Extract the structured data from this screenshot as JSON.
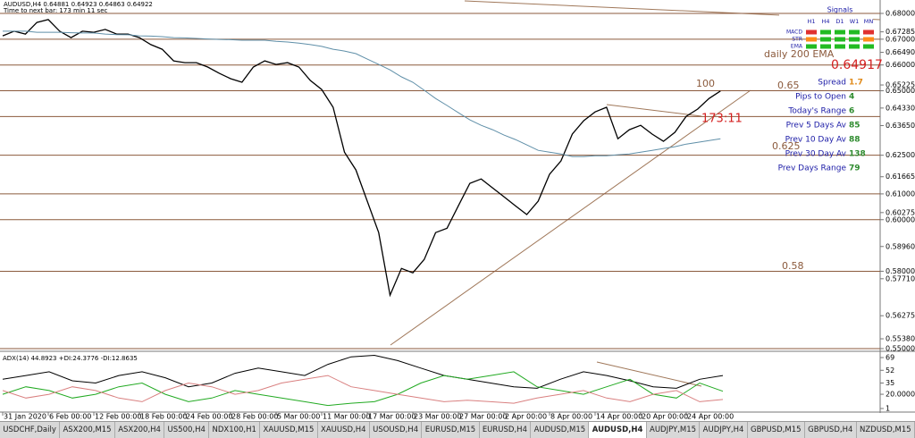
{
  "chart_data": [
    {
      "type": "line",
      "title": "AUDUSD,H4  0.64881 0.64923 0.64863 0.64922",
      "subtitle": "Time to next bar: 173 min 11 sec",
      "categories": [
        "31 Jan 2020",
        null,
        null,
        null,
        "6 Feb 00:00",
        null,
        null,
        null,
        "12 Feb 00:00",
        null,
        null,
        null,
        "18 Feb 00:00",
        null,
        null,
        null,
        "24 Feb 00:00",
        null,
        null,
        null,
        "28 Feb 00:00",
        null,
        null,
        null,
        "5 Mar 00:00",
        null,
        null,
        null,
        "11 Mar 00:00",
        null,
        null,
        null,
        "17 Mar 00:00",
        null,
        null,
        null,
        "23 Mar 00:00",
        null,
        null,
        null,
        "27 Mar 00:00",
        null,
        null,
        null,
        "2 Apr 00:00",
        null,
        null,
        null,
        "8 Apr 00:00",
        null,
        null,
        null,
        "14 Apr 00:00",
        null,
        null,
        null,
        "20 Apr 00:00",
        null,
        null,
        null,
        "24 Apr 00:00",
        null,
        null,
        null
      ],
      "series": [
        {
          "color": "#000000",
          "values": [
            0.6713,
            0.6731,
            0.672,
            0.6765,
            0.6776,
            0.6731,
            0.6706,
            0.6731,
            0.6727,
            0.6738,
            0.672,
            0.672,
            0.6706,
            0.6679,
            0.6661,
            0.6616,
            0.6609,
            0.6609,
            0.6592,
            0.6568,
            0.6547,
            0.6533,
            0.6592,
            0.6616,
            0.6602,
            0.6609,
            0.6592,
            0.654,
            0.6505,
            0.6436,
            0.6262,
            0.6193,
            0.6072,
            0.595,
            0.5707,
            0.5811,
            0.5794,
            0.5846,
            0.595,
            0.5967,
            0.6054,
            0.6141,
            0.6158,
            0.6123,
            0.6089,
            0.6054,
            0.602,
            0.6072,
            0.6176,
            0.6228,
            0.6332,
            0.6384,
            0.6418,
            0.6436,
            0.6314,
            0.6349,
            0.6366,
            0.6332,
            0.6304,
            0.6339,
            0.6401,
            0.6429,
            0.647,
            0.6499
          ]
        },
        {
          "color": "#5f8fa8",
          "values": [
            0.6731,
            0.6731,
            0.6731,
            0.6727,
            0.6727,
            0.6727,
            0.6725,
            0.6724,
            0.6724,
            0.672,
            0.6718,
            0.6717,
            0.6713,
            0.6712,
            0.671,
            0.6706,
            0.6705,
            0.6703,
            0.6701,
            0.6699,
            0.6698,
            0.6696,
            0.6696,
            0.6696,
            0.6692,
            0.6689,
            0.6685,
            0.6679,
            0.6672,
            0.6661,
            0.6654,
            0.6644,
            0.6623,
            0.6602,
            0.6581,
            0.6554,
            0.6533,
            0.6502,
            0.647,
            0.6443,
            0.6415,
            0.6387,
            0.6366,
            0.6349,
            0.6328,
            0.6311,
            0.629,
            0.6269,
            0.6262,
            0.6255,
            0.6245,
            0.6245,
            0.6248,
            0.6248,
            0.6252,
            0.6255,
            0.6262,
            0.6269,
            0.6276,
            0.6283,
            0.6293,
            0.63,
            0.6307,
            0.6314
          ]
        }
      ],
      "ylim": [
        0.5493,
        0.6852
      ],
      "yticks": [
        {
          "value": 0.68,
          "label": "0.68000"
        },
        {
          "value": 0.67285,
          "label": "0.67285"
        },
        {
          "value": 0.67,
          "label": "0.67000"
        },
        {
          "value": 0.6649,
          "label": "0.66490"
        },
        {
          "value": 0.66,
          "label": "0.66000"
        },
        {
          "value": 0.65225,
          "label": "0.65225"
        },
        {
          "value": 0.65,
          "label": "0.65000"
        },
        {
          "value": 0.6433,
          "label": "0.64330"
        },
        {
          "value": 0.6365,
          "label": "0.63650"
        },
        {
          "value": 0.625,
          "label": "0.62500"
        },
        {
          "value": 0.61665,
          "label": "0.61665"
        },
        {
          "value": 0.61,
          "label": "0.61000"
        },
        {
          "value": 0.60275,
          "label": "0.60275"
        },
        {
          "value": 0.6,
          "label": "0.60000"
        },
        {
          "value": 0.5896,
          "label": "0.58960"
        },
        {
          "value": 0.58,
          "label": "0.58000"
        },
        {
          "value": 0.5771,
          "label": "0.57710"
        },
        {
          "value": 0.56275,
          "label": "0.56275"
        },
        {
          "value": 0.5538,
          "label": "0.55380"
        },
        {
          "value": 0.55,
          "label": "0.55000"
        }
      ],
      "levels": [
        0.68,
        0.67,
        0.66,
        0.65,
        0.64,
        0.625,
        0.61,
        0.6,
        0.58,
        0.55
      ],
      "level_color": "#8b5a3c",
      "annotations": [
        "daily 200 EMA",
        "0.64917",
        "100",
        "0.65",
        "173:11",
        "0.625",
        "0.58"
      ]
    },
    {
      "type": "line",
      "title": "ADX(14) 44.8923 +DI:24.3776 -DI:12.8635",
      "categories": [
        null,
        null,
        null,
        null,
        null,
        null,
        null,
        null,
        null,
        null,
        null,
        null,
        null,
        null,
        null,
        null,
        null,
        null,
        null,
        null,
        null,
        null,
        null,
        null,
        null,
        null,
        null,
        null,
        null,
        null,
        null,
        null
      ],
      "series": [
        {
          "color": "#000000",
          "values": [
            40,
            45,
            50,
            38,
            35,
            45,
            50,
            42,
            30,
            35,
            48,
            55,
            50,
            45,
            60,
            70,
            72,
            65,
            55,
            45,
            40,
            35,
            30,
            28,
            40,
            50,
            45,
            38,
            30,
            28,
            40,
            45
          ]
        },
        {
          "color": "#22aa22",
          "values": [
            20,
            30,
            25,
            15,
            20,
            30,
            35,
            20,
            10,
            15,
            25,
            20,
            15,
            10,
            5,
            8,
            10,
            20,
            35,
            45,
            40,
            45,
            50,
            30,
            25,
            20,
            30,
            40,
            20,
            15,
            35,
            24
          ]
        },
        {
          "color": "#d98080",
          "values": [
            25,
            15,
            20,
            30,
            25,
            15,
            10,
            25,
            35,
            30,
            20,
            25,
            35,
            40,
            45,
            30,
            25,
            20,
            15,
            10,
            12,
            10,
            8,
            15,
            20,
            25,
            15,
            10,
            20,
            25,
            10,
            13
          ]
        }
      ],
      "ylim": [
        -2.6,
        75
      ],
      "yticks": [
        69,
        52,
        35,
        {
          "value": 20,
          "label": "20.0000"
        },
        1
      ]
    }
  ],
  "signals": {
    "title": "Signals",
    "columns": [
      "H1",
      "H4",
      "D1",
      "W1",
      "MN"
    ],
    "rows": [
      {
        "name": "MACD",
        "colors": [
          "#e03030",
          "#22bb22",
          "#22bb22",
          "#22bb22",
          "#e03030"
        ]
      },
      {
        "name": "STR",
        "colors": [
          "#ff8c1a",
          "#22bb22",
          "#22bb22",
          "#22bb22",
          "#ff8c1a"
        ]
      },
      {
        "name": "EMA",
        "colors": [
          "#22bb22",
          "#22bb22",
          "#22bb22",
          "#22bb22",
          "#22bb22"
        ]
      }
    ]
  },
  "stats": [
    {
      "label": "Spread",
      "value": 1.7
    },
    {
      "label": "Pips to Open",
      "value": 4
    },
    {
      "label": "Today's Range",
      "value": 6
    },
    {
      "label": "Prev 5 Days Av",
      "value": 85
    },
    {
      "label": "Prev 10 Day Av",
      "value": 88
    },
    {
      "label": "Prev 30 Day Av",
      "value": 138
    },
    {
      "label": "Prev Days Range",
      "value": 79
    }
  ],
  "tabs": [
    "USDCHF,Daily",
    "ASX200,M15",
    "ASX200,H4",
    "US500,H4",
    "NDX100,H1",
    "XAUUSD,M15",
    "XAUUSD,H4",
    "USOUSD,H4",
    "EURUSD,M15",
    "EURUSD,H4",
    "AUDUSD,M15",
    "AUDUSD,H4",
    "AUDJPY,M15",
    "AUDJPY,H4",
    "GBPUSD,M15",
    "GBPUSD,H4",
    "NZDUSD,M15"
  ],
  "active_tab": 11
}
